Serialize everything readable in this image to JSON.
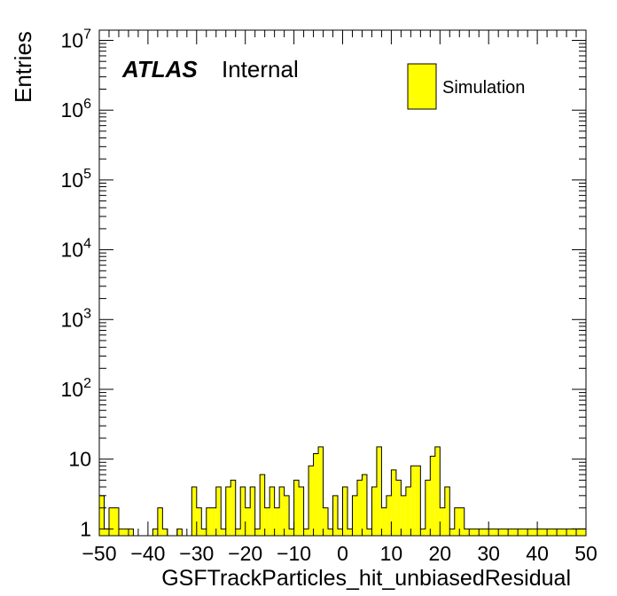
{
  "chart_data": {
    "type": "bar",
    "ylabel": "Entries",
    "xlabel": "GSFTrackParticles_hit_unbiasedResidual",
    "xlim": [
      -50,
      50
    ],
    "ylim": [
      0.8,
      14000000
    ],
    "yscale": "log",
    "bin_width": 1,
    "x_ticks": [
      "−50",
      "−40",
      "−30",
      "−20",
      "−10",
      "0",
      "10",
      "20",
      "30",
      "40",
      "50"
    ],
    "y_ticks": [
      "1",
      "10",
      "10^2",
      "10^3",
      "10^4",
      "10^5",
      "10^6",
      "10^7"
    ],
    "atlas_label": "ATLAS",
    "atlas_sublabel": "Internal",
    "legend": {
      "label": "Simulation",
      "position": "top-right"
    },
    "colors": {
      "fill": "#ffff00",
      "line": "#000000"
    },
    "series": [
      {
        "name": "Simulation",
        "bins_low_edge": [
          -50,
          -49,
          -48,
          -47,
          -46,
          -45,
          -44,
          -43,
          -42,
          -41,
          -40,
          -39,
          -38,
          -37,
          -36,
          -35,
          -34,
          -33,
          -32,
          -31,
          -30,
          -29,
          -28,
          -27,
          -26,
          -25,
          -24,
          -23,
          -22,
          -21,
          -20,
          -19,
          -18,
          -17,
          -16,
          -15,
          -14,
          -13,
          -12,
          -11,
          -10,
          -9,
          -8,
          -7,
          -6,
          -5,
          -4,
          -3,
          -2,
          -1,
          0,
          1,
          2,
          3,
          4,
          5,
          6,
          7,
          8,
          9,
          10,
          11,
          12,
          13,
          14,
          15,
          16,
          17,
          18,
          19,
          20,
          21,
          22,
          23,
          24,
          25,
          26,
          27,
          28,
          29,
          30,
          31,
          32,
          33,
          34,
          35,
          36,
          37,
          38,
          39,
          40,
          41,
          42,
          43,
          44,
          45,
          46,
          47,
          48,
          49
        ],
        "values": [
          3,
          1,
          2,
          2,
          1,
          1,
          1,
          0,
          0,
          0,
          0,
          1,
          2,
          1,
          0,
          0,
          1,
          0,
          0,
          4,
          2,
          1,
          2,
          2,
          4,
          1,
          4,
          5,
          1,
          4,
          2,
          4,
          1,
          6,
          2,
          4,
          2,
          4,
          3,
          1,
          5,
          4,
          1,
          8,
          12,
          15,
          2,
          1,
          3,
          1,
          4,
          1,
          3,
          5,
          6,
          1,
          4,
          15,
          2,
          3,
          7,
          5,
          3,
          4,
          8,
          8,
          1,
          5,
          11,
          15,
          2,
          4,
          1,
          2,
          2,
          1,
          1,
          1,
          1,
          1,
          1,
          1,
          1,
          1,
          1,
          1,
          1,
          1,
          1,
          1,
          1,
          1,
          1,
          1,
          1,
          1,
          1,
          1,
          1,
          1
        ]
      }
    ]
  }
}
